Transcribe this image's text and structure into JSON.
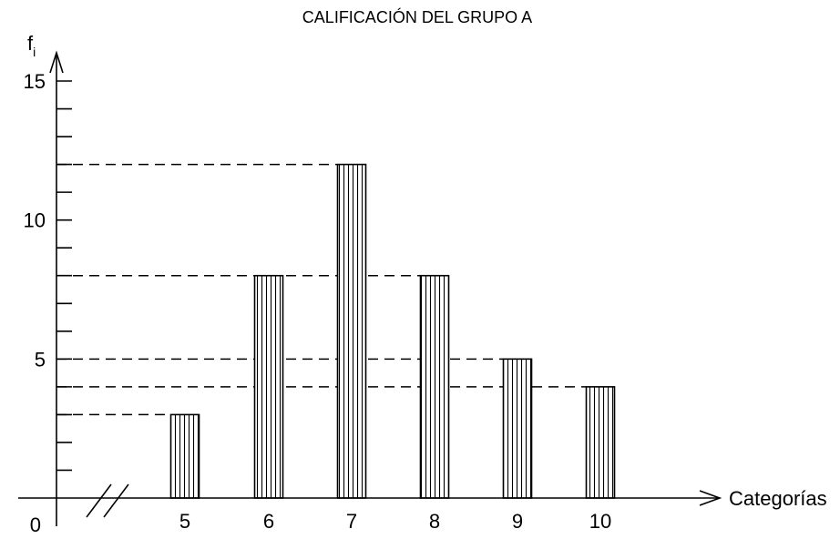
{
  "chart_data": {
    "type": "bar",
    "title": "CALIFICACIÓN DEL GRUPO A",
    "xlabel": "Categorías",
    "ylabel_main": "f",
    "ylabel_sub": "i",
    "categories": [
      "5",
      "6",
      "7",
      "8",
      "9",
      "10"
    ],
    "values": [
      3,
      8,
      12,
      8,
      5,
      4
    ],
    "ylim": [
      0,
      15
    ],
    "y_tick_labels": [
      "0",
      "5",
      "10",
      "15"
    ],
    "y_tick_label_values": [
      0,
      5,
      10,
      15
    ],
    "y_minor_tick_step": 1,
    "axis_break": true,
    "reference_lines": true,
    "bar_fill": "vertical-stripes",
    "colors": {
      "ink": "#000000",
      "background": "#ffffff"
    }
  }
}
